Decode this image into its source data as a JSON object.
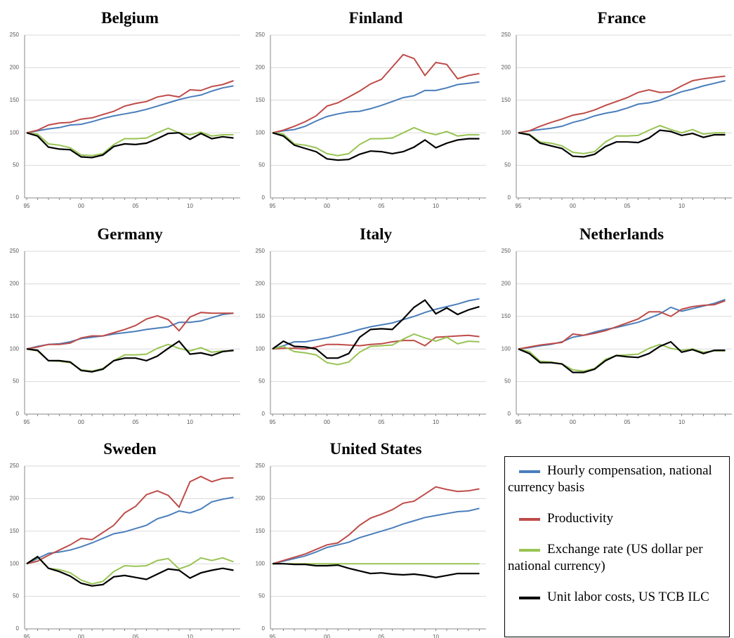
{
  "chart_data": [
    {
      "type": "line",
      "title": "Belgium",
      "categories": [
        "95",
        null,
        null,
        null,
        null,
        "00",
        null,
        null,
        null,
        null,
        "05",
        null,
        null,
        null,
        null,
        "10",
        null,
        null,
        null,
        null
      ],
      "ylim": [
        0,
        250
      ],
      "yticks": [
        0,
        50,
        100,
        150,
        200,
        250
      ],
      "grid": true,
      "series": [
        {
          "name": "Hourly compensation, national currency basis",
          "color": "#4a7ebb",
          "values": [
            100,
            103,
            106,
            108,
            112,
            113,
            117,
            122,
            126,
            129,
            132,
            136,
            141,
            146,
            151,
            155,
            158,
            164,
            169,
            172
          ]
        },
        {
          "name": "Productivity",
          "color": "#be4b48",
          "values": [
            100,
            104,
            112,
            115,
            116,
            121,
            123,
            128,
            133,
            141,
            145,
            148,
            155,
            158,
            155,
            166,
            165,
            171,
            174,
            180
          ]
        },
        {
          "name": "Exchange rate (US dollar per national currency)",
          "color": "#98c454",
          "values": [
            100,
            98,
            83,
            81,
            77,
            66,
            65,
            68,
            82,
            91,
            91,
            92,
            100,
            107,
            100,
            97,
            101,
            95,
            97,
            97
          ]
        },
        {
          "name": "Unit labor costs, US TCB ILC",
          "color": "#000000",
          "values": [
            100,
            95,
            78,
            75,
            74,
            63,
            62,
            66,
            79,
            83,
            82,
            84,
            91,
            99,
            100,
            90,
            99,
            91,
            94,
            92
          ]
        }
      ]
    },
    {
      "type": "line",
      "title": "Finland",
      "categories": [
        "95",
        null,
        null,
        null,
        null,
        "00",
        null,
        null,
        null,
        null,
        "05",
        null,
        null,
        null,
        null,
        "10",
        null,
        null,
        null,
        null
      ],
      "ylim": [
        0,
        250
      ],
      "yticks": [
        0,
        50,
        100,
        150,
        200,
        250
      ],
      "grid": true,
      "series": [
        {
          "color": "#4a7ebb",
          "values": [
            100,
            103,
            105,
            110,
            118,
            125,
            129,
            132,
            133,
            137,
            142,
            148,
            154,
            157,
            165,
            165,
            169,
            174,
            176,
            178
          ]
        },
        {
          "color": "#be4b48",
          "values": [
            100,
            104,
            110,
            117,
            126,
            141,
            146,
            155,
            164,
            175,
            182,
            201,
            220,
            214,
            188,
            208,
            205,
            183,
            188,
            191
          ]
        },
        {
          "color": "#98c454",
          "values": [
            100,
            98,
            83,
            81,
            77,
            68,
            65,
            68,
            82,
            91,
            91,
            92,
            100,
            108,
            101,
            97,
            102,
            95,
            97,
            97
          ]
        },
        {
          "color": "#000000",
          "values": [
            100,
            95,
            81,
            76,
            71,
            60,
            58,
            59,
            67,
            72,
            71,
            68,
            71,
            78,
            89,
            77,
            84,
            89,
            91,
            91
          ]
        }
      ]
    },
    {
      "type": "line",
      "title": "France",
      "categories": [
        "95",
        null,
        null,
        null,
        null,
        "00",
        null,
        null,
        null,
        null,
        "05",
        null,
        null,
        null,
        null,
        "10",
        null,
        null,
        null,
        null
      ],
      "ylim": [
        0,
        250
      ],
      "yticks": [
        0,
        50,
        100,
        150,
        200,
        250
      ],
      "grid": true,
      "series": [
        {
          "color": "#4a7ebb",
          "values": [
            100,
            103,
            105,
            107,
            110,
            116,
            120,
            126,
            130,
            133,
            138,
            144,
            146,
            150,
            157,
            163,
            167,
            172,
            176,
            180
          ]
        },
        {
          "color": "#be4b48",
          "values": [
            100,
            103,
            110,
            116,
            121,
            127,
            130,
            135,
            142,
            148,
            154,
            162,
            166,
            162,
            163,
            172,
            180,
            183,
            185,
            187
          ]
        },
        {
          "color": "#98c454",
          "values": [
            100,
            98,
            86,
            84,
            80,
            70,
            68,
            71,
            86,
            95,
            95,
            96,
            104,
            111,
            105,
            100,
            105,
            98,
            100,
            100
          ]
        },
        {
          "color": "#000000",
          "values": [
            100,
            97,
            84,
            80,
            76,
            64,
            63,
            67,
            79,
            86,
            86,
            85,
            92,
            104,
            102,
            96,
            99,
            93,
            97,
            97
          ]
        }
      ]
    },
    {
      "type": "line",
      "title": "Germany",
      "categories": [
        "95",
        null,
        null,
        null,
        null,
        "00",
        null,
        null,
        null,
        null,
        "05",
        null,
        null,
        null,
        null,
        "10",
        null,
        null,
        null,
        null
      ],
      "ylim": [
        0,
        250
      ],
      "yticks": [
        0,
        50,
        100,
        150,
        200,
        250
      ],
      "grid": true,
      "series": [
        {
          "color": "#4a7ebb",
          "values": [
            100,
            104,
            107,
            108,
            111,
            116,
            118,
            120,
            123,
            125,
            127,
            130,
            132,
            134,
            141,
            141,
            143,
            148,
            153,
            155
          ]
        },
        {
          "color": "#be4b48",
          "values": [
            100,
            103,
            107,
            107,
            109,
            117,
            120,
            120,
            125,
            130,
            136,
            146,
            151,
            145,
            128,
            149,
            156,
            155,
            155,
            155
          ]
        },
        {
          "color": "#98c454",
          "values": [
            100,
            97,
            82,
            81,
            79,
            68,
            66,
            70,
            82,
            91,
            91,
            92,
            101,
            107,
            101,
            97,
            102,
            95,
            97,
            97
          ]
        },
        {
          "color": "#000000",
          "values": [
            100,
            98,
            82,
            82,
            80,
            67,
            65,
            69,
            82,
            86,
            86,
            82,
            89,
            101,
            112,
            92,
            94,
            90,
            96,
            98
          ]
        }
      ]
    },
    {
      "type": "line",
      "title": "Italy",
      "categories": [
        "95",
        null,
        null,
        null,
        null,
        "00",
        null,
        null,
        null,
        null,
        "05",
        null,
        null,
        null,
        null,
        "10",
        null,
        null,
        null,
        null
      ],
      "ylim": [
        0,
        250
      ],
      "yticks": [
        0,
        50,
        100,
        150,
        200,
        250
      ],
      "grid": true,
      "series": [
        {
          "color": "#4a7ebb",
          "values": [
            100,
            105,
            111,
            111,
            114,
            117,
            121,
            125,
            130,
            134,
            137,
            140,
            145,
            150,
            156,
            161,
            165,
            169,
            174,
            177
          ]
        },
        {
          "color": "#be4b48",
          "values": [
            100,
            101,
            101,
            100,
            103,
            107,
            107,
            106,
            105,
            107,
            108,
            111,
            113,
            113,
            105,
            118,
            119,
            120,
            121,
            119
          ]
        },
        {
          "color": "#98c454",
          "values": [
            100,
            104,
            96,
            94,
            91,
            79,
            76,
            80,
            95,
            104,
            105,
            106,
            115,
            123,
            117,
            112,
            118,
            108,
            112,
            111
          ]
        },
        {
          "color": "#000000",
          "values": [
            100,
            112,
            104,
            103,
            100,
            86,
            86,
            93,
            118,
            130,
            131,
            130,
            146,
            164,
            175,
            154,
            163,
            153,
            160,
            165
          ]
        }
      ]
    },
    {
      "type": "line",
      "title": "Netherlands",
      "categories": [
        "95",
        null,
        null,
        null,
        null,
        "00",
        null,
        null,
        null,
        null,
        "05",
        null,
        null,
        null,
        null,
        "10",
        null,
        null,
        null,
        null
      ],
      "ylim": [
        0,
        250
      ],
      "yticks": [
        0,
        50,
        100,
        150,
        200,
        250
      ],
      "grid": true,
      "series": [
        {
          "color": "#4a7ebb",
          "values": [
            100,
            102,
            105,
            107,
            111,
            118,
            121,
            126,
            130,
            133,
            137,
            141,
            147,
            154,
            164,
            158,
            162,
            166,
            170,
            176
          ]
        },
        {
          "color": "#be4b48",
          "values": [
            100,
            103,
            106,
            108,
            110,
            123,
            121,
            124,
            128,
            134,
            140,
            146,
            157,
            157,
            150,
            161,
            165,
            167,
            168,
            174
          ]
        },
        {
          "color": "#98c454",
          "values": [
            100,
            96,
            81,
            80,
            77,
            68,
            66,
            70,
            84,
            90,
            91,
            92,
            101,
            107,
            101,
            98,
            100,
            95,
            97,
            97
          ]
        },
        {
          "color": "#000000",
          "values": [
            100,
            93,
            79,
            79,
            77,
            64,
            64,
            69,
            82,
            90,
            88,
            87,
            93,
            104,
            111,
            95,
            99,
            93,
            98,
            98
          ]
        }
      ]
    },
    {
      "type": "line",
      "title": "Sweden",
      "categories": [
        "95",
        null,
        null,
        null,
        null,
        "00",
        null,
        null,
        null,
        null,
        "05",
        null,
        null,
        null,
        null,
        "10",
        null,
        null,
        null,
        null
      ],
      "ylim": [
        0,
        250
      ],
      "yticks": [
        0,
        50,
        100,
        150,
        200,
        250
      ],
      "grid": true,
      "series": [
        {
          "color": "#4a7ebb",
          "values": [
            100,
            108,
            116,
            118,
            121,
            126,
            132,
            139,
            146,
            149,
            154,
            159,
            169,
            174,
            181,
            178,
            184,
            195,
            199,
            202
          ]
        },
        {
          "color": "#be4b48",
          "values": [
            100,
            104,
            113,
            121,
            129,
            139,
            137,
            148,
            159,
            178,
            188,
            206,
            212,
            205,
            187,
            226,
            234,
            226,
            231,
            232
          ]
        },
        {
          "color": "#98c454",
          "values": [
            100,
            110,
            93,
            91,
            86,
            75,
            69,
            73,
            88,
            97,
            96,
            97,
            105,
            108,
            92,
            98,
            109,
            105,
            109,
            103
          ]
        },
        {
          "color": "#000000",
          "values": [
            100,
            111,
            93,
            88,
            81,
            70,
            66,
            68,
            80,
            82,
            79,
            76,
            84,
            92,
            90,
            78,
            86,
            90,
            93,
            90
          ]
        }
      ]
    },
    {
      "type": "line",
      "title": "United States",
      "categories": [
        "95",
        null,
        null,
        null,
        null,
        "00",
        null,
        null,
        null,
        null,
        "05",
        null,
        null,
        null,
        null,
        "10",
        null,
        null,
        null,
        null
      ],
      "ylim": [
        0,
        250
      ],
      "yticks": [
        0,
        50,
        100,
        150,
        200,
        250
      ],
      "grid": true,
      "series": [
        {
          "color": "#4a7ebb",
          "values": [
            100,
            104,
            108,
            112,
            118,
            125,
            129,
            133,
            140,
            145,
            150,
            155,
            161,
            166,
            171,
            174,
            177,
            180,
            181,
            185
          ]
        },
        {
          "color": "#be4b48",
          "values": [
            100,
            105,
            110,
            115,
            122,
            129,
            132,
            144,
            159,
            170,
            176,
            183,
            193,
            196,
            207,
            218,
            214,
            211,
            212,
            215
          ]
        },
        {
          "color": "#98c454",
          "values": [
            100,
            100,
            100,
            100,
            100,
            100,
            100,
            100,
            100,
            100,
            100,
            100,
            100,
            100,
            100,
            100,
            100,
            100,
            100,
            100
          ]
        },
        {
          "color": "#000000",
          "values": [
            100,
            100,
            99,
            99,
            97,
            97,
            98,
            93,
            89,
            85,
            86,
            84,
            83,
            84,
            82,
            79,
            82,
            85,
            85,
            85
          ]
        }
      ]
    }
  ]
}
